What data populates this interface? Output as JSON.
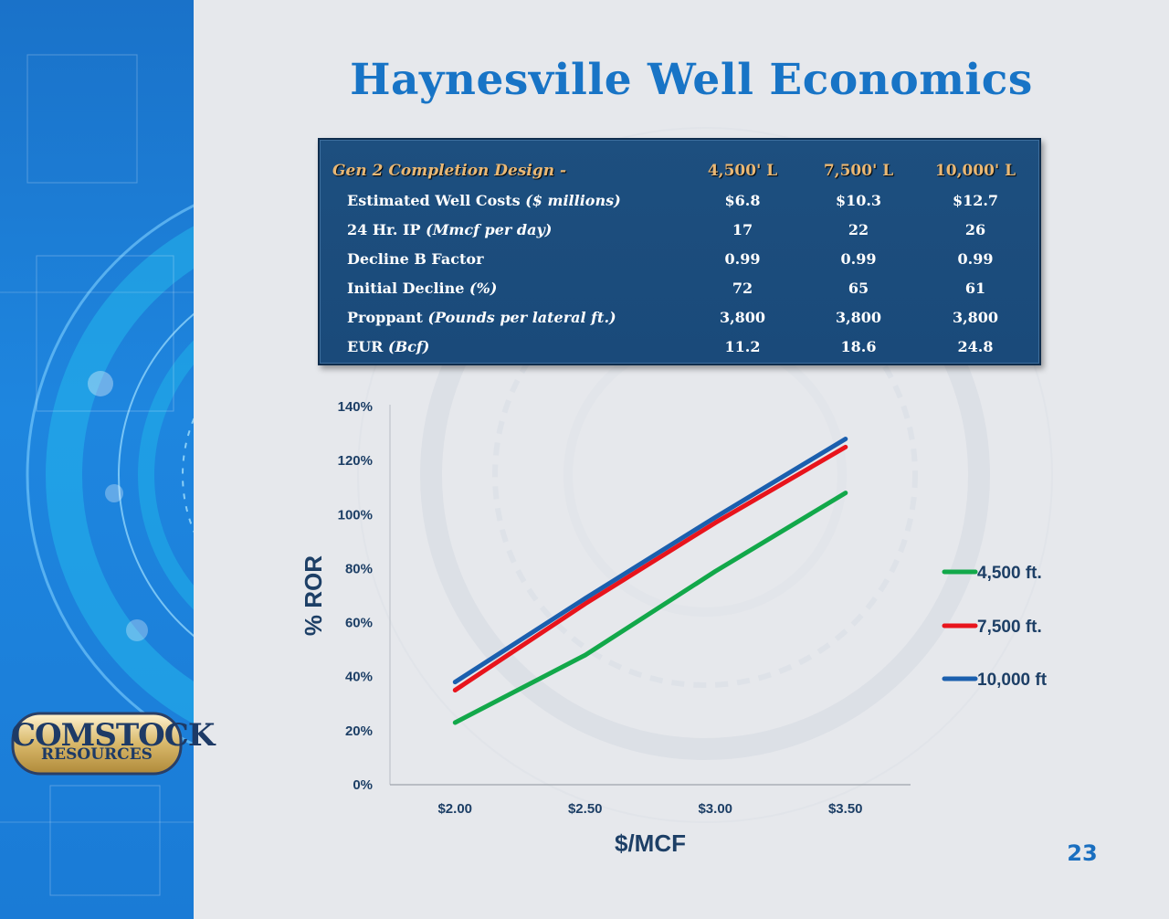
{
  "title": "Haynesville Well Economics",
  "page_number": "23",
  "logo": {
    "word1": "COMSTOCK",
    "word2": "RESOURCES"
  },
  "colors": {
    "title": "#1874c6",
    "table_bg": "#1a4a7a",
    "table_header": "#e9b875",
    "line_4500": "#12a84a",
    "line_7500": "#e8141c",
    "line_10000": "#1b5fae"
  },
  "table": {
    "header": {
      "label": "Gen 2 Completion Design -",
      "cols": [
        "4,500' L",
        "7,500' L",
        "10,000' L"
      ]
    },
    "rows": [
      {
        "label": "Estimated Well Costs ",
        "unit": "($ millions)",
        "values": [
          "$6.8",
          "$10.3",
          "$12.7"
        ]
      },
      {
        "label": "24 Hr. IP ",
        "unit": "(Mmcf per day)",
        "values": [
          "17",
          "22",
          "26"
        ]
      },
      {
        "label": "Decline B Factor",
        "unit": "",
        "values": [
          "0.99",
          "0.99",
          "0.99"
        ]
      },
      {
        "label": "Initial Decline ",
        "unit": "(%)",
        "values": [
          "72",
          "65",
          "61"
        ]
      },
      {
        "label": "Proppant ",
        "unit": "(Pounds per lateral ft.)",
        "values": [
          "3,800",
          "3,800",
          "3,800"
        ]
      },
      {
        "label": "EUR ",
        "unit": "(Bcf)",
        "values": [
          "11.2",
          "18.6",
          "24.8"
        ]
      }
    ]
  },
  "chart_data": {
    "type": "line",
    "title": "",
    "xlabel": "$/MCF",
    "ylabel": "% ROR",
    "categories": [
      "$2.00",
      "$2.50",
      "$3.00",
      "$3.50"
    ],
    "y_ticks": [
      "0%",
      "20%",
      "40%",
      "60%",
      "80%",
      "100%",
      "120%",
      "140%"
    ],
    "ylim": [
      0,
      140
    ],
    "grid": false,
    "legend_position": "right",
    "series": [
      {
        "name": "4,500 ft.",
        "color": "#12a84a",
        "values": [
          23,
          48,
          79,
          108
        ]
      },
      {
        "name": "7,500 ft.",
        "color": "#e8141c",
        "values": [
          35,
          67,
          97,
          125
        ]
      },
      {
        "name": "10,000 ft",
        "color": "#1b5fae",
        "values": [
          38,
          69,
          99,
          128
        ]
      }
    ]
  }
}
